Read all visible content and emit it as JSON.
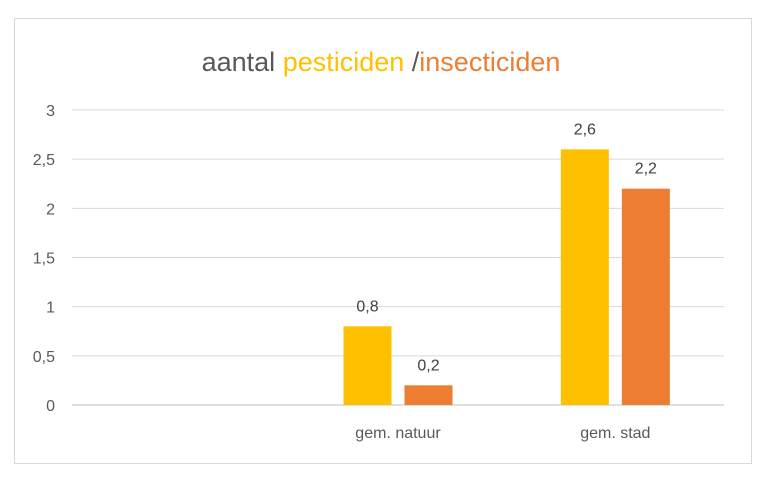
{
  "chart_data": {
    "type": "bar",
    "title_parts": [
      {
        "text": "aantal ",
        "color": "#595959"
      },
      {
        "text": "pesticiden",
        "color": "#FFC000"
      },
      {
        "text": " /",
        "color": "#595959"
      },
      {
        "text": "insecticiden",
        "color": "#ED7D31"
      }
    ],
    "categories": [
      "",
      "gem. natuur",
      "gem. stad"
    ],
    "series": [
      {
        "values": [
          null,
          0.8,
          2.6
        ],
        "color": "#FFC000"
      },
      {
        "values": [
          null,
          0.2,
          2.2
        ],
        "color": "#ED7D31"
      }
    ],
    "data_labels": [
      [
        null,
        "0,8",
        "2,6"
      ],
      [
        null,
        "0,2",
        "2,2"
      ]
    ],
    "y_ticks": [
      0,
      0.5,
      1,
      1.5,
      2,
      2.5,
      3
    ],
    "y_tick_labels": [
      "0",
      "0,5",
      "1",
      "1,5",
      "2",
      "2,5",
      "3"
    ],
    "ylim": [
      0,
      3
    ],
    "grid": true,
    "legend": "none"
  }
}
